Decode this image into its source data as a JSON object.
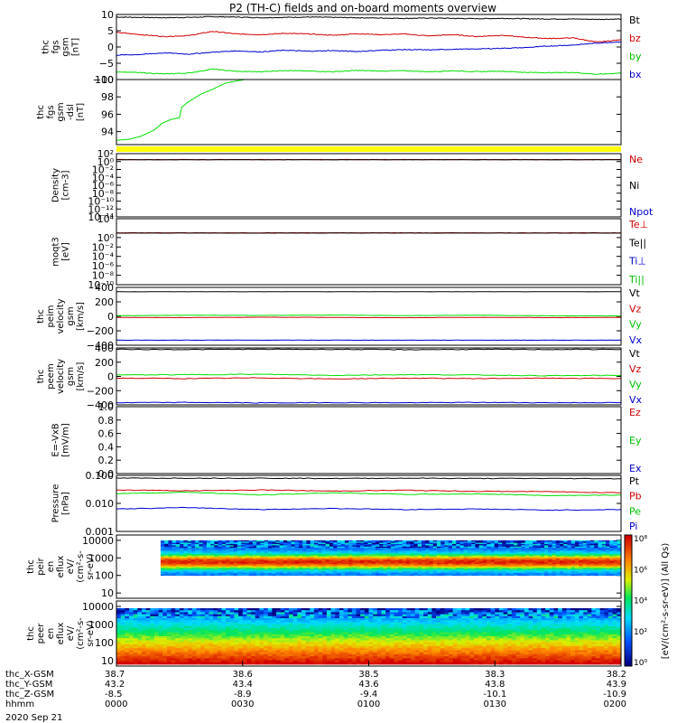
{
  "title": "P2 (TH-C) fields and on-board moments overview",
  "date": "2020 Sep 21",
  "colors": {
    "black": "#000000",
    "red": "#d00000",
    "green": "#00e000",
    "blue": "#0000d0",
    "yellow": "#ffff00"
  },
  "chart_data": [
    {
      "id": "fgs",
      "type": "line",
      "ylabel": [
        "thc",
        "fgs",
        "gsm",
        "[nT]"
      ],
      "ylim": [
        -10,
        10
      ],
      "yticks": [
        "10",
        "5",
        "0",
        "−5",
        "−10"
      ],
      "yticks_v": [
        10,
        5,
        0,
        -5,
        -10
      ],
      "legend": [
        {
          "label": "Bt",
          "color": "#000000"
        },
        {
          "label": "bz",
          "color": "#d00000"
        },
        {
          "label": "by",
          "color": "#00c000"
        },
        {
          "label": "bx",
          "color": "#0000d0"
        }
      ],
      "series": [
        {
          "name": "Bt",
          "color": "#000000",
          "values": [
            9.2,
            9.1,
            9.0,
            9.1,
            9.3,
            9.2,
            9.0,
            9.1,
            9.2,
            9.1,
            9.0,
            8.9,
            8.8,
            8.9,
            8.8,
            8.7,
            8.8,
            8.7,
            8.6,
            8.6,
            8.5,
            8.6
          ]
        },
        {
          "name": "bz",
          "color": "#d00000",
          "values": [
            4.5,
            3.8,
            3.2,
            3.5,
            4.8,
            4.0,
            3.8,
            4.2,
            4.0,
            3.6,
            4.1,
            3.8,
            4.0,
            3.4,
            3.8,
            3.2,
            3.6,
            3.0,
            2.6,
            2.8,
            1.5,
            2.2
          ]
        },
        {
          "name": "by",
          "color": "#00e000",
          "values": [
            -7.6,
            -7.9,
            -8.3,
            -8.0,
            -6.8,
            -7.5,
            -7.6,
            -7.2,
            -7.4,
            -7.6,
            -7.2,
            -7.4,
            -7.3,
            -7.6,
            -7.3,
            -7.6,
            -7.4,
            -7.8,
            -7.9,
            -7.8,
            -8.4,
            -8.0
          ]
        },
        {
          "name": "bx",
          "color": "#0000d0",
          "values": [
            -2.5,
            -2.3,
            -1.8,
            -2.2,
            -1.6,
            -1.2,
            -1.5,
            -1.0,
            -1.3,
            -1.1,
            -1.4,
            -1.0,
            -0.8,
            -0.9,
            -0.7,
            -0.6,
            -0.4,
            -0.2,
            0.3,
            0.6,
            1.2,
            1.6
          ]
        }
      ]
    },
    {
      "id": "fgs_dsl",
      "type": "line",
      "ylabel": [
        "thc",
        "fgs",
        "gsm",
        "-dsl",
        "[nT]"
      ],
      "ylim": [
        92.5,
        100
      ],
      "yticks": [
        "100",
        "98",
        "96",
        "94"
      ],
      "yticks_v": [
        100,
        98,
        96,
        94
      ],
      "legend": [],
      "series": [
        {
          "name": "",
          "color": "#00e000",
          "x": [
            0,
            3,
            6,
            9,
            11,
            13,
            15,
            15.5,
            17,
            20,
            23,
            26,
            30.5
          ],
          "values": [
            93.0,
            93.1,
            93.5,
            94.2,
            95.0,
            95.4,
            95.6,
            96.8,
            97.4,
            98.3,
            98.9,
            99.6,
            100.0
          ]
        }
      ]
    },
    {
      "id": "density",
      "type": "line",
      "ylabel": [
        "Density",
        "[cm-3]"
      ],
      "ylim": [
        -14,
        2
      ],
      "log": true,
      "yticks": [
        "10²",
        "10⁰",
        "10⁻²",
        "10⁻⁴",
        "10⁻⁶",
        "10⁻⁸",
        "10⁻¹⁰",
        "10⁻¹²",
        "10⁻¹⁴"
      ],
      "yticks_v": [
        2,
        0,
        -2,
        -4,
        -6,
        -8,
        -10,
        -12,
        -14
      ],
      "legend": [
        {
          "label": "Ne",
          "color": "#d00000"
        },
        {
          "label": "Ni",
          "color": "#000000"
        },
        {
          "label": "Npot",
          "color": "#0000d0"
        }
      ],
      "series": [
        {
          "name": "Ne",
          "color": "#d00000",
          "values": [
            0.5,
            0.5,
            0.5,
            0.5,
            0.5,
            0.5,
            0.5,
            0.5,
            0.5
          ]
        },
        {
          "name": "Ni",
          "color": "#000000",
          "values": [
            0.45,
            0.45,
            0.45,
            0.45,
            0.45,
            0.45,
            0.45,
            0.45,
            0.45
          ]
        }
      ]
    },
    {
      "id": "temperature",
      "type": "line",
      "ylabel": [
        "moqt3",
        "[eV]"
      ],
      "ylim": [
        -10,
        4
      ],
      "log": true,
      "yticks": [
        "10⁴",
        "10⁰",
        "10⁻²",
        "10⁻⁴",
        "10⁻⁶",
        "10⁻⁸",
        "10⁻¹⁰"
      ],
      "yticks_v": [
        4,
        0,
        -2,
        -4,
        -6,
        -8,
        -10
      ],
      "legend": [
        {
          "label": "Te⊥",
          "color": "#d00000"
        },
        {
          "label": "Te||",
          "color": "#000000"
        },
        {
          "label": "Ti⊥",
          "color": "#0000d0"
        },
        {
          "label": "Ti||",
          "color": "#00c000"
        }
      ],
      "series": [
        {
          "name": "Te⊥",
          "color": "#d00000",
          "values": [
            1.0,
            1.0,
            1.0,
            1.0,
            1.0,
            1.0,
            1.0,
            1.0
          ]
        },
        {
          "name": "Te||",
          "color": "#000000",
          "values": [
            0.95,
            0.95,
            0.95,
            0.95,
            0.95,
            0.95,
            0.95,
            0.95
          ]
        }
      ]
    },
    {
      "id": "peim_vel",
      "type": "line",
      "ylabel": [
        "thc",
        "peim",
        "velocity",
        "gsm",
        "[km/s]"
      ],
      "ylim": [
        -400,
        400
      ],
      "yticks": [
        "400",
        "200",
        "0",
        "−200",
        "−400"
      ],
      "yticks_v": [
        400,
        200,
        0,
        -200,
        -400
      ],
      "legend": [
        {
          "label": "Vt",
          "color": "#000000"
        },
        {
          "label": "Vz",
          "color": "#d00000"
        },
        {
          "label": "Vy",
          "color": "#00c000"
        },
        {
          "label": "Vx",
          "color": "#0000d0"
        }
      ],
      "series": [
        {
          "name": "Vt",
          "color": "#000000",
          "values": [
            340,
            340,
            340,
            340,
            340,
            340,
            340,
            340
          ]
        },
        {
          "name": "Vy",
          "color": "#00e000",
          "values": [
            10,
            15,
            12,
            18,
            10,
            15,
            8,
            5
          ]
        },
        {
          "name": "Vz",
          "color": "#d00000",
          "values": [
            -15,
            -18,
            -12,
            -15,
            -20,
            -15,
            -18,
            -15
          ]
        },
        {
          "name": "Vx",
          "color": "#0000d0",
          "values": [
            -330,
            -330,
            -330,
            -330,
            -330,
            -330,
            -330,
            -330
          ]
        }
      ]
    },
    {
      "id": "peem_vel",
      "type": "line",
      "ylabel": [
        "thc",
        "peem",
        "velocity",
        "gsm",
        "[km/s]"
      ],
      "ylim": [
        -400,
        400
      ],
      "yticks": [
        "400",
        "200",
        "0",
        "−200",
        "−400"
      ],
      "yticks_v": [
        400,
        200,
        0,
        -200,
        -400
      ],
      "legend": [
        {
          "label": "Vt",
          "color": "#000000"
        },
        {
          "label": "Vz",
          "color": "#d00000"
        },
        {
          "label": "Vy",
          "color": "#00c000"
        },
        {
          "label": "Vx",
          "color": "#0000d0"
        }
      ],
      "series": [
        {
          "name": "Vt",
          "color": "#000000",
          "values": [
            380,
            378,
            382,
            380,
            376,
            380,
            378,
            380
          ]
        },
        {
          "name": "Vy",
          "color": "#00e000",
          "values": [
            20,
            25,
            30,
            15,
            25,
            20,
            10,
            15
          ]
        },
        {
          "name": "Vz",
          "color": "#d00000",
          "values": [
            -25,
            -30,
            -20,
            -35,
            -25,
            -30,
            -25,
            -30
          ]
        },
        {
          "name": "Vx",
          "color": "#0000d0",
          "values": [
            -370,
            -365,
            -372,
            -368,
            -370,
            -365,
            -370,
            -368
          ]
        }
      ]
    },
    {
      "id": "efield",
      "type": "line",
      "ylabel": [
        "E=-VxB",
        "[mV/m]"
      ],
      "ylim": [
        0,
        1
      ],
      "yticks": [
        "1.0",
        "0.8",
        "0.6",
        "0.4",
        "0.2",
        "0.0"
      ],
      "yticks_v": [
        1.0,
        0.8,
        0.6,
        0.4,
        0.2,
        0.0
      ],
      "legend": [
        {
          "label": "Ez",
          "color": "#d00000"
        },
        {
          "label": "Ey",
          "color": "#00c000"
        },
        {
          "label": "Ex",
          "color": "#0000d0"
        }
      ],
      "series": []
    },
    {
      "id": "pressure",
      "type": "line",
      "ylabel": [
        "Pressure",
        "[nPa]"
      ],
      "ylim": [
        -3,
        -1
      ],
      "log": true,
      "yticks": [
        "0.100",
        "0.010",
        "0.001"
      ],
      "yticks_v": [
        -1,
        -2,
        -3
      ],
      "legend": [
        {
          "label": "Pt",
          "color": "#000000"
        },
        {
          "label": "Pb",
          "color": "#d00000"
        },
        {
          "label": "Pe",
          "color": "#00c000"
        },
        {
          "label": "Pi",
          "color": "#0000d0"
        }
      ],
      "series": [
        {
          "name": "Pt",
          "color": "#000000",
          "values": [
            -1.1,
            -1.1,
            -1.1,
            -1.11,
            -1.1,
            -1.11,
            -1.11,
            -1.12
          ]
        },
        {
          "name": "Pb",
          "color": "#d00000",
          "values": [
            -1.52,
            -1.55,
            -1.52,
            -1.56,
            -1.53,
            -1.57,
            -1.58,
            -1.62
          ]
        },
        {
          "name": "Pe",
          "color": "#00e000",
          "values": [
            -1.65,
            -1.6,
            -1.7,
            -1.62,
            -1.68,
            -1.66,
            -1.72,
            -1.7
          ]
        },
        {
          "name": "Pi",
          "color": "#0000d0",
          "values": [
            -2.2,
            -2.15,
            -2.22,
            -2.18,
            -2.22,
            -2.2,
            -2.24,
            -2.22
          ]
        }
      ]
    },
    {
      "id": "peir",
      "type": "heatmap",
      "ylabel": [
        "thc",
        "peir",
        "en",
        "eflux",
        "eV/",
        "(cm²-s-",
        "sr-eV)"
      ],
      "ylim": [
        0.7,
        4.3
      ],
      "log": true,
      "yticks": [
        "10000",
        "1000",
        "100",
        "10"
      ],
      "yticks_v": [
        4,
        3,
        2,
        1
      ],
      "range_y": [
        2.0,
        4.0
      ],
      "start_x": 10.5
    },
    {
      "id": "peer",
      "type": "heatmap",
      "ylabel": [
        "thc",
        "peer",
        "en",
        "eflux",
        "eV/",
        "(cm²-s-",
        "sr-eV)"
      ],
      "ylim": [
        0.7,
        4.3
      ],
      "log": true,
      "yticks": [
        "10000",
        "1000",
        "100",
        "10"
      ],
      "yticks_v": [
        4,
        3,
        2,
        1
      ],
      "range_y": [
        0.8,
        3.9
      ],
      "start_x": 0
    }
  ],
  "colorbar": {
    "label": "[eV/(cm²-s-sr-eV)] (All Qs)",
    "ticks": [
      "10⁸",
      "10⁶",
      "10⁴",
      "10²",
      "10⁰"
    ]
  },
  "xaxis": {
    "xlim": [
      0,
      120
    ],
    "labels": [
      "thc_X-GSM",
      "thc_Y-GSM",
      "thc_Z-GSM",
      "hhmm"
    ],
    "tick_x": [
      0,
      30,
      60,
      90,
      120
    ],
    "rows": [
      [
        "38.7",
        "38.6",
        "38.5",
        "38.3",
        "38.2"
      ],
      [
        "43.2",
        "43.4",
        "43.6",
        "43.8",
        "43.9"
      ],
      [
        "-8.5",
        "-8.9",
        "-9.4",
        "-10.1",
        "-10.9"
      ],
      [
        "0000",
        "0030",
        "0100",
        "0130",
        "0200"
      ]
    ]
  }
}
